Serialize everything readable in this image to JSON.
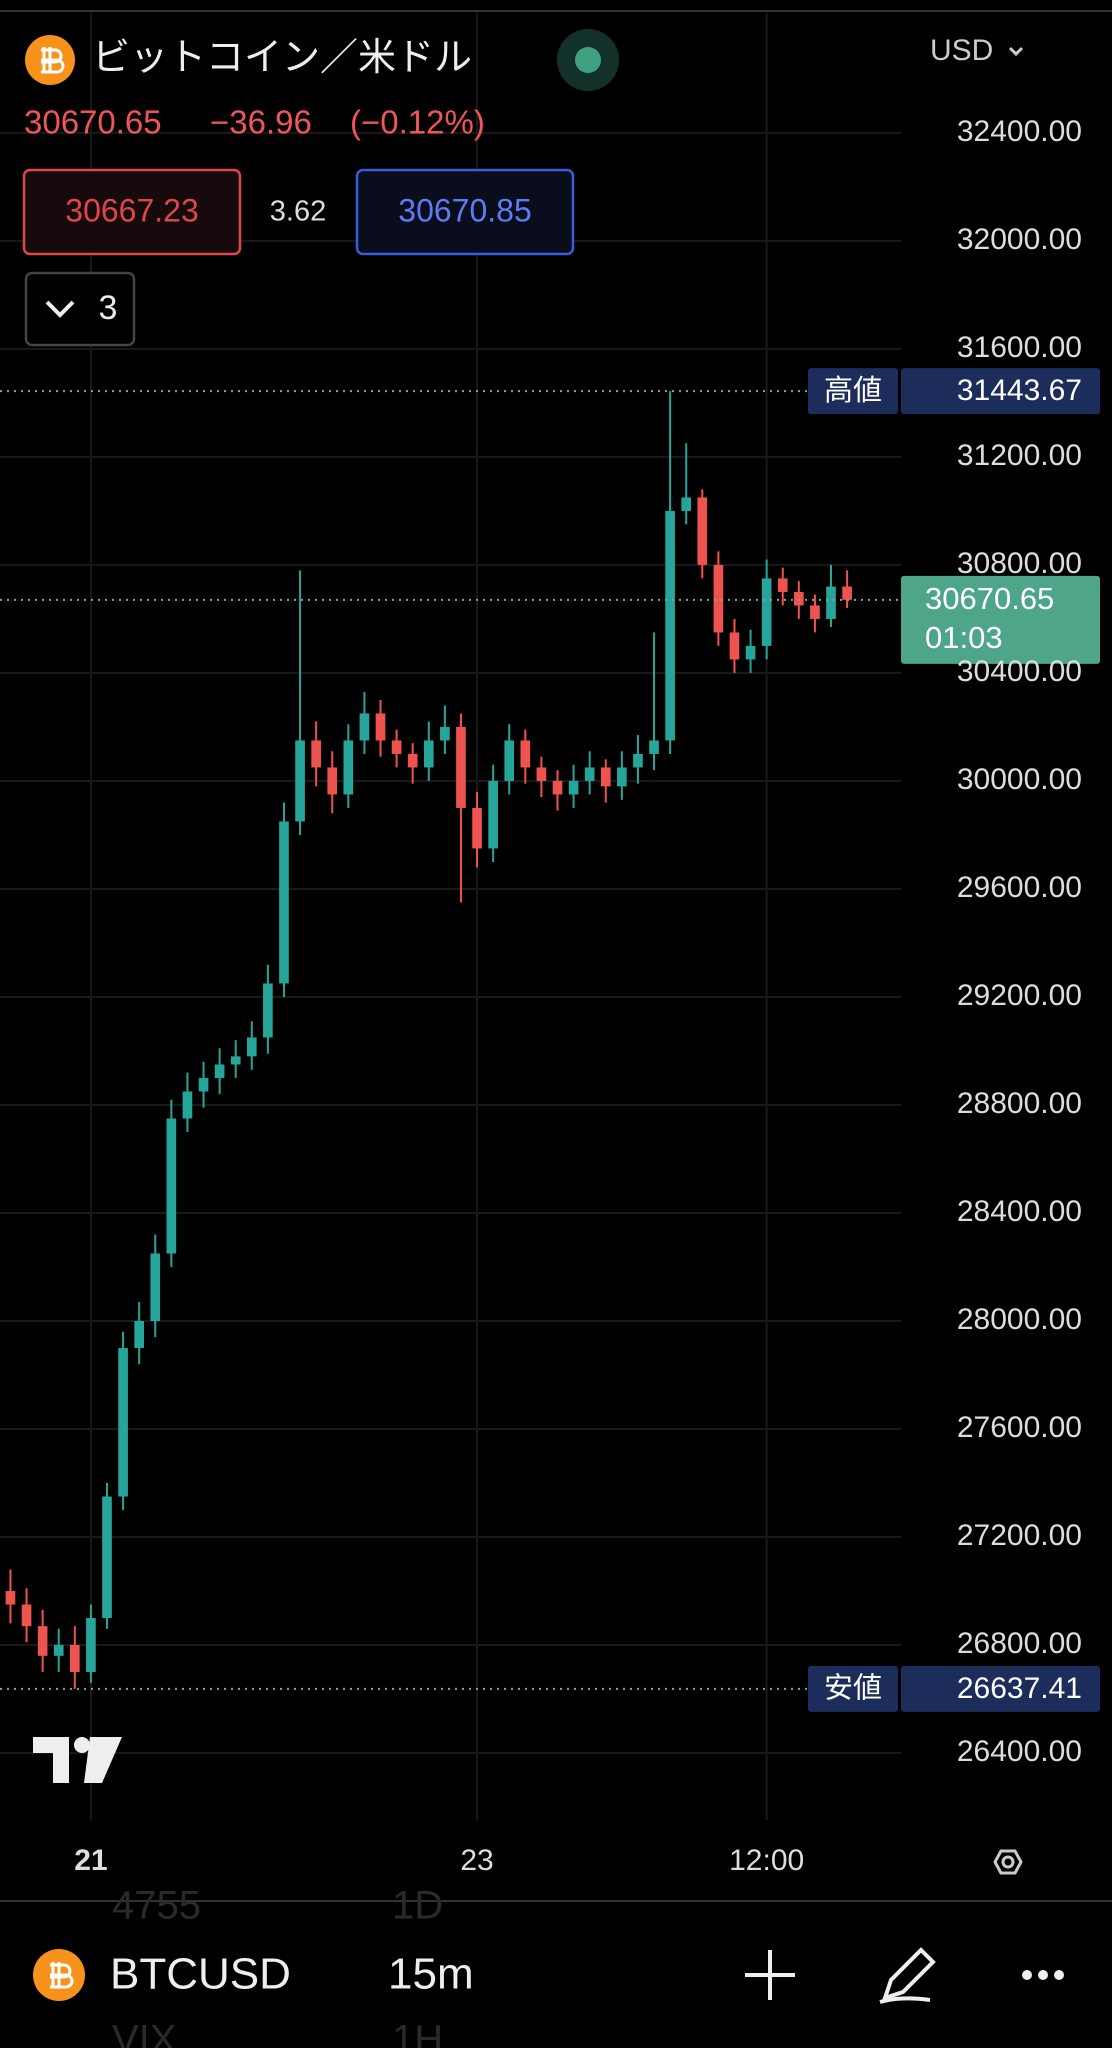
{
  "header": {
    "title": "ビットコイン／米ドル",
    "price": "30670.65",
    "change": "−36.96",
    "change_pct": "(−0.12%)",
    "bid": "30667.23",
    "spread": "3.62",
    "ask": "30670.85",
    "indicators": "3",
    "currency": "USD"
  },
  "chart_data": {
    "type": "candlestick",
    "up_color": "#26a69a",
    "down_color": "#ef5350",
    "x": [
      -10,
      -8,
      -6,
      -4,
      -2,
      0,
      2,
      4,
      6,
      8,
      10,
      12,
      14,
      16,
      18,
      20,
      22,
      24,
      26,
      28,
      30,
      32,
      34,
      36,
      38,
      40,
      42,
      44,
      46,
      48,
      50,
      52,
      54,
      56,
      58,
      60,
      62,
      64,
      66,
      68,
      70,
      72,
      74,
      76,
      78,
      80,
      82,
      84,
      86,
      88,
      90,
      92,
      94
    ],
    "open": [
      27000,
      26950,
      26870,
      26760,
      26800,
      26700,
      26900,
      27350,
      27900,
      28000,
      28250,
      28750,
      28850,
      28900,
      28950,
      28980,
      29050,
      29250,
      29850,
      30150,
      30050,
      29950,
      30150,
      30250,
      30150,
      30100,
      30050,
      30150,
      30200,
      29900,
      29750,
      30000,
      30150,
      30050,
      30000,
      29950,
      30000,
      30050,
      29980,
      30050,
      30100,
      30150,
      31000,
      31050,
      30800,
      30550,
      30450,
      30500,
      30750,
      30700,
      30650,
      30600,
      30720
    ],
    "high": [
      27080,
      27010,
      26930,
      26860,
      26870,
      26950,
      27400,
      27960,
      28070,
      28320,
      28820,
      28920,
      28960,
      29010,
      29040,
      29110,
      29320,
      29920,
      30780,
      30220,
      30110,
      30210,
      30330,
      30300,
      30190,
      30140,
      30220,
      30280,
      30250,
      29960,
      30060,
      30210,
      30190,
      30090,
      30040,
      30060,
      30110,
      30080,
      30110,
      30170,
      30550,
      31443.67,
      31250,
      31080,
      30850,
      30600,
      30560,
      30820,
      30790,
      30740,
      30690,
      30800,
      30780
    ],
    "low": [
      26880,
      26810,
      26700,
      26700,
      26637.41,
      26660,
      26860,
      27300,
      27840,
      27940,
      28200,
      28700,
      28790,
      28840,
      28900,
      28930,
      28990,
      29200,
      29800,
      29980,
      29880,
      29900,
      30100,
      30090,
      30050,
      29990,
      30000,
      30100,
      29550,
      29680,
      29700,
      29950,
      29990,
      29940,
      29890,
      29900,
      29950,
      29920,
      29930,
      29990,
      30040,
      30100,
      30950,
      30750,
      30500,
      30400,
      30400,
      30450,
      30650,
      30600,
      30550,
      30570,
      30640
    ],
    "close": [
      26950,
      26870,
      26760,
      26800,
      26700,
      26900,
      27350,
      27900,
      28000,
      28250,
      28750,
      28850,
      28900,
      28950,
      28980,
      29050,
      29250,
      29850,
      30150,
      30050,
      29950,
      30150,
      30250,
      30150,
      30100,
      30050,
      30150,
      30200,
      29900,
      29750,
      30000,
      30150,
      30050,
      30000,
      29950,
      30000,
      30050,
      29980,
      30050,
      30100,
      30150,
      31000,
      31050,
      30800,
      30550,
      30450,
      30500,
      30750,
      30700,
      30650,
      30600,
      30720,
      30670.65
    ],
    "high_label": "高値",
    "low_label": "安値",
    "countdown": "01:03",
    "ylim": [
      26152,
      32844
    ],
    "yticks": [
      {
        "value": 26400,
        "label": "26400.00"
      },
      {
        "value": 26800,
        "label": "26800.00"
      },
      {
        "value": 27200,
        "label": "27200.00"
      },
      {
        "value": 27600,
        "label": "27600.00"
      },
      {
        "value": 28000,
        "label": "28000.00"
      },
      {
        "value": 28400,
        "label": "28400.00"
      },
      {
        "value": 28800,
        "label": "28800.00"
      },
      {
        "value": 29200,
        "label": "29200.00"
      },
      {
        "value": 29600,
        "label": "29600.00"
      },
      {
        "value": 30000,
        "label": "30000.00"
      },
      {
        "value": 30400,
        "label": "30400.00"
      },
      {
        "value": 30800,
        "label": "30800.00"
      },
      {
        "value": 31200,
        "label": "31200.00"
      },
      {
        "value": 31600,
        "label": "31600.00"
      },
      {
        "value": 32000,
        "label": "32000.00"
      },
      {
        "value": 32400,
        "label": "32400.00"
      }
    ],
    "xlim": [
      -11.3,
      100.7
    ],
    "xticks": [
      {
        "value": 0,
        "label": "21"
      },
      {
        "value": 48,
        "label": "23"
      },
      {
        "value": 84,
        "label": "12:00"
      }
    ],
    "grid": true
  },
  "footer": {
    "symbol": "BTCUSD",
    "interval": "15m",
    "behind": [
      "4755",
      "1D",
      "VIX",
      "1H"
    ]
  }
}
